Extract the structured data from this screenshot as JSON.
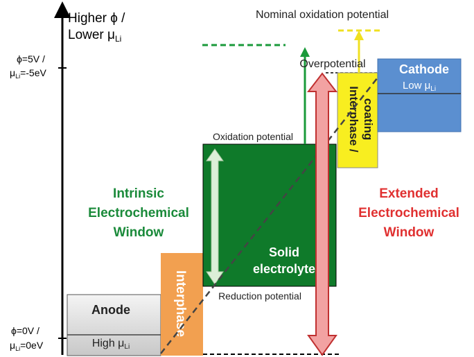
{
  "axis": {
    "label_line1": "Higher ϕ /",
    "label_line2": "Lower μ",
    "label_line2_sub": "Li",
    "top_tick_line1": "ϕ=5V /",
    "top_tick_mu": "μ",
    "top_tick_sub": "Li",
    "top_tick_rest": "=-5eV",
    "bottom_tick_line1": "ϕ=0V /",
    "bottom_tick_mu": "μ",
    "bottom_tick_sub": "Li",
    "bottom_tick_rest": "=0eV"
  },
  "labels": {
    "nominal": "Nominal oxidation potential",
    "overpotential": "Overpotential",
    "oxidation": "Oxidation potential",
    "reduction": "Reduction potential",
    "intrinsic": [
      "Intrinsic",
      "Electrochemical",
      "Window"
    ],
    "extended": [
      "Extended",
      "Electrochemical",
      "Window"
    ]
  },
  "blocks": {
    "anode": {
      "name": "Anode",
      "level": "High μ",
      "level_sub": "Li"
    },
    "interphase": "Interphase",
    "electrolyte": [
      "Solid",
      "electrolyte"
    ],
    "coating": [
      "Interphase /",
      "coating"
    ],
    "cathode": {
      "name": "Cathode",
      "level": "Low μ",
      "level_sub": "Li"
    }
  }
}
